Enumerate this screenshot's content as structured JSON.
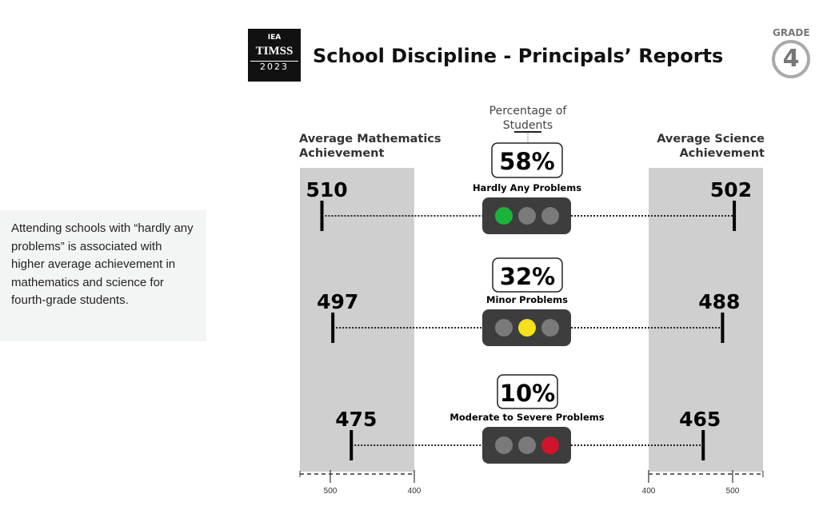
{
  "logo": {
    "org": "IEA",
    "name": "TIMSS",
    "year": "2023"
  },
  "title": "School Discipline - Principals’ Reports",
  "grade": {
    "label": "GRADE",
    "value": "4"
  },
  "note": "Attending schools with “hardly any problems” is associated with higher average achievement in mathematics and science for fourth-grade students.",
  "chart_data": {
    "type": "table",
    "title": "School Discipline - Principals’ Reports",
    "center_label": "Percentage of Students",
    "left_label": "Average Mathematics Achievement",
    "right_label": "Average Science Achievement",
    "left_ticks": [
      500,
      400
    ],
    "right_ticks": [
      400,
      500
    ],
    "axis_range": [
      400,
      536
    ],
    "rows": [
      {
        "category": "Hardly Any Problems",
        "percent": "58%",
        "math": 510,
        "science": 502,
        "light": "green",
        "color": "#1cb33a"
      },
      {
        "category": "Minor Problems",
        "percent": "32%",
        "math": 497,
        "science": 488,
        "light": "yellow",
        "color": "#f4e11c"
      },
      {
        "category": "Moderate to Severe Problems",
        "percent": "10%",
        "math": 475,
        "science": 465,
        "light": "red",
        "color": "#d0142c"
      }
    ]
  }
}
